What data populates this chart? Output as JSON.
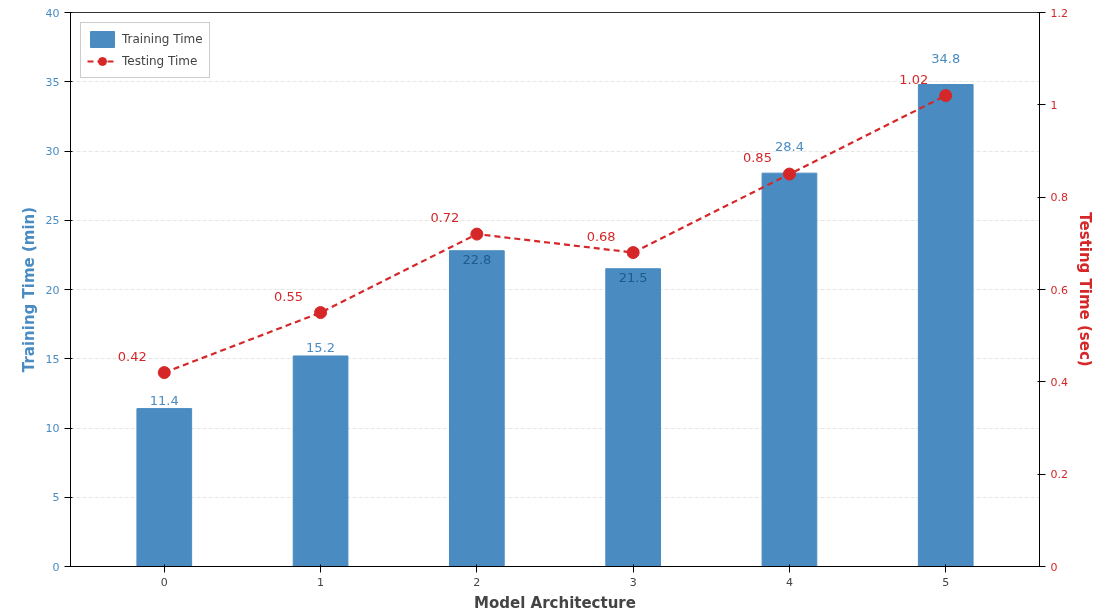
{
  "chart_data": {
    "type": "bar",
    "categories": [
      "0",
      "1",
      "2",
      "3",
      "4",
      "5"
    ],
    "xlabel": "Model Architecture",
    "ylabel": "Training Time (min)",
    "y2label": "Testing Time (sec)",
    "ylim": [
      0,
      40
    ],
    "yticks": [
      0,
      5,
      10,
      15,
      20,
      25,
      30,
      35,
      40
    ],
    "y2lim": [
      0,
      1.2
    ],
    "y2ticks": [
      0,
      0.2,
      0.4,
      0.6,
      0.8,
      1,
      1.2
    ],
    "series": [
      {
        "name": "Training Time",
        "color": "#4a8cc2",
        "values": [
          11.4,
          15.2,
          22.8,
          21.5,
          28.4,
          34.8
        ]
      },
      {
        "name": "Testing Time",
        "type": "line",
        "axis": "y2",
        "color": "#d62728",
        "marker": "circle",
        "line_style": "dashed",
        "values": [
          0.42,
          0.55,
          0.72,
          0.68,
          0.85,
          1.02
        ]
      }
    ],
    "data_labels": true,
    "grid": "y",
    "legend": "top left"
  }
}
